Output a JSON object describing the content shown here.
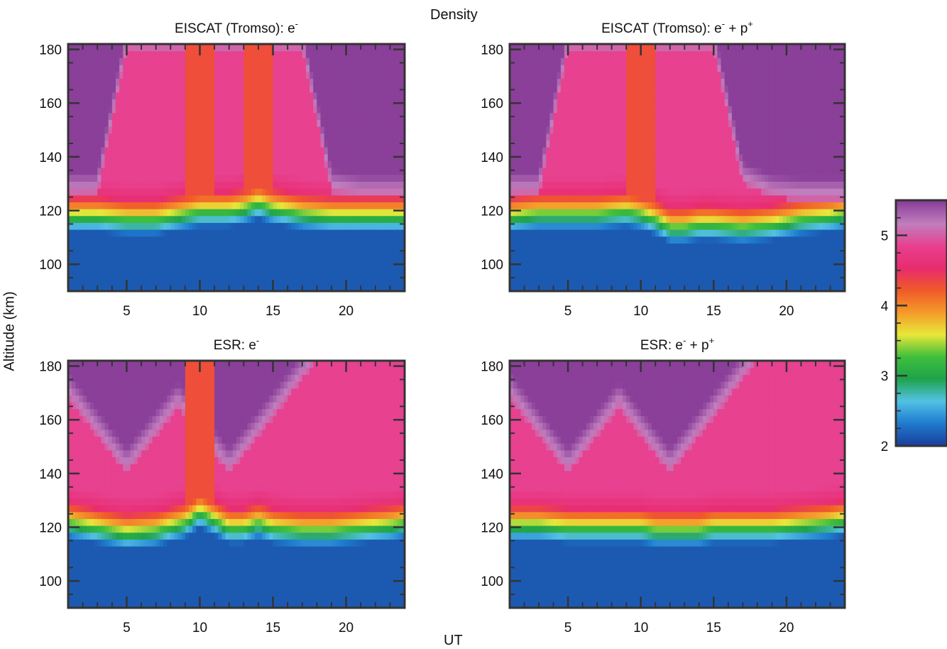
{
  "figure": {
    "title": "Density",
    "xlabel": "UT",
    "ylabel": "Altitude (km)"
  },
  "colorbar": {
    "ticks": [
      2,
      3,
      4,
      5
    ],
    "range": [
      2,
      5.5
    ],
    "colormap": [
      "#1a3f9c",
      "#1f7ccf",
      "#53c2e4",
      "#1fa34a",
      "#3fbf3c",
      "#e8e83a",
      "#f59a2a",
      "#f05a28",
      "#e82b6e",
      "#e8408f",
      "#c07fbe",
      "#8a3f99"
    ]
  },
  "chart_data": [
    {
      "type": "heatmap",
      "title": "EISCAT (Tromso): e",
      "title_sup": "-",
      "title_rest": "",
      "title_rest_sup": "",
      "xlabel": "",
      "ylabel": "Altitude (km)",
      "xlim": [
        1,
        24
      ],
      "ylim": [
        90,
        182
      ],
      "xticks": [
        5,
        10,
        15,
        20
      ],
      "yticks": [
        100,
        120,
        140,
        160,
        180
      ],
      "x": [
        1,
        3,
        5,
        7,
        9,
        10,
        11,
        12,
        13,
        14,
        15,
        17,
        19,
        21,
        23,
        24
      ],
      "transition_altitude_km": [
        116,
        116,
        115,
        115,
        117,
        118,
        118,
        118,
        119,
        121,
        119,
        117,
        116,
        116,
        116,
        116
      ],
      "pink_top_km": [
        126,
        126,
        180,
        180,
        180,
        180,
        180,
        180,
        180,
        180,
        180,
        180,
        127,
        125,
        125,
        125
      ],
      "purple_regions": [
        "upper-left",
        "upper-right"
      ],
      "orange_plume_x": [
        10,
        14
      ]
    },
    {
      "type": "heatmap",
      "title": "EISCAT (Tromso): e",
      "title_sup": "-",
      "title_rest": " + p",
      "title_rest_sup": "+",
      "xlabel": "",
      "ylabel": "",
      "xlim": [
        1,
        24
      ],
      "ylim": [
        90,
        182
      ],
      "xticks": [
        5,
        10,
        15,
        20
      ],
      "yticks": [
        100,
        120,
        140,
        160,
        180
      ],
      "x": [
        1,
        3,
        5,
        7,
        9,
        10,
        11,
        12,
        13,
        14,
        15,
        17,
        19,
        21,
        23,
        24
      ],
      "transition_altitude_km": [
        116,
        117,
        117,
        117,
        118,
        117,
        115,
        112,
        112,
        113,
        113,
        112,
        113,
        115,
        116,
        117
      ],
      "pink_top_km": [
        126,
        126,
        180,
        180,
        180,
        180,
        180,
        180,
        180,
        180,
        180,
        130,
        125,
        124,
        124,
        124
      ],
      "purple_regions": [
        "upper-left",
        "upper-right"
      ],
      "orange_plume_x": [
        10
      ]
    },
    {
      "type": "heatmap",
      "title": "ESR: e",
      "title_sup": "-",
      "title_rest": "",
      "title_rest_sup": "",
      "xlabel": "",
      "ylabel": "",
      "xlim": [
        1,
        24
      ],
      "ylim": [
        90,
        182
      ],
      "xticks": [
        5,
        10,
        15,
        20
      ],
      "yticks": [
        100,
        120,
        140,
        160,
        180
      ],
      "x": [
        1,
        3,
        5,
        7,
        9,
        10,
        11,
        12,
        13,
        14,
        15,
        17,
        19,
        21,
        23,
        24
      ],
      "transition_altitude_km": [
        120,
        118,
        116,
        117,
        120,
        124,
        121,
        118,
        118,
        120,
        118,
        117,
        117,
        118,
        119,
        120
      ],
      "purple_dip_x": [
        5,
        12
      ],
      "orange_plume_x": [
        10
      ]
    },
    {
      "type": "heatmap",
      "title": "ESR: e",
      "title_sup": "-",
      "title_rest": " + p",
      "title_rest_sup": "+",
      "xlabel": "",
      "ylabel": "",
      "xlim": [
        1,
        24
      ],
      "ylim": [
        90,
        182
      ],
      "xticks": [
        5,
        10,
        15,
        20
      ],
      "yticks": [
        100,
        120,
        140,
        160,
        180
      ],
      "x": [
        1,
        3,
        5,
        7,
        9,
        10,
        11,
        12,
        13,
        14,
        15,
        17,
        19,
        21,
        23,
        24
      ],
      "transition_altitude_km": [
        119,
        119,
        118,
        118,
        118,
        118,
        117,
        117,
        117,
        117,
        118,
        118,
        118,
        119,
        120,
        121
      ],
      "purple_dip_x": [
        5,
        12
      ]
    }
  ]
}
